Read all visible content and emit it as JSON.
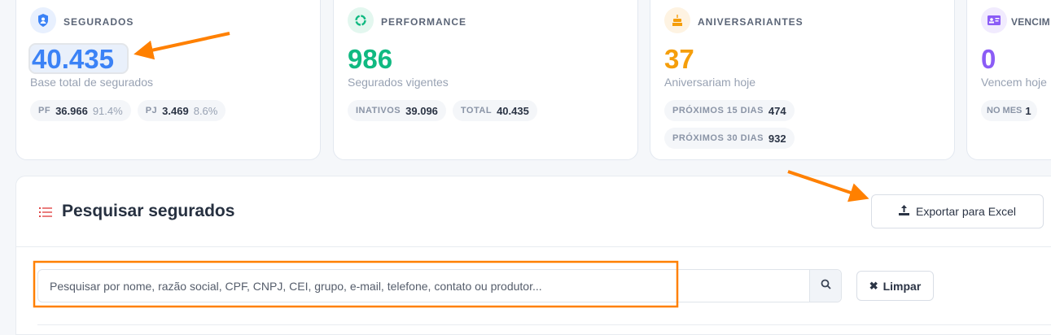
{
  "cards": [
    {
      "title": "SEGURADOS",
      "value": "40.435",
      "subtitle": "Base total de segurados",
      "color": "#3b82f6",
      "icon": "shield-user-icon",
      "pills": [
        {
          "label": "PF",
          "value": "36.966",
          "pct": "91.4%"
        },
        {
          "label": "PJ",
          "value": "3.469",
          "pct": "8.6%"
        }
      ]
    },
    {
      "title": "PERFORMANCE",
      "value": "986",
      "subtitle": "Segurados vigentes",
      "color": "#10b981",
      "icon": "ring-chart-icon",
      "pills": [
        {
          "label": "INATIVOS",
          "value": "39.096"
        },
        {
          "label": "TOTAL",
          "value": "40.435"
        }
      ]
    },
    {
      "title": "ANIVERSARIANTES",
      "value": "37",
      "subtitle": "Aniversariam hoje",
      "color": "#f59e0b",
      "icon": "birthday-cake-icon",
      "pills": [
        {
          "label": "PRÓXIMOS 15 DIAS",
          "value": "474"
        },
        {
          "label": "PRÓXIMOS 30 DIAS",
          "value": "932"
        }
      ]
    },
    {
      "title": "VENCIM",
      "value": "0",
      "subtitle": "Vencem hoje",
      "color": "#8b5cf6",
      "icon": "id-card-icon",
      "pills": [
        {
          "label": "NO MES",
          "value": "1"
        }
      ]
    }
  ],
  "search_panel": {
    "title": "Pesquisar segurados",
    "export_label": "Exportar para Excel",
    "search_placeholder": "Pesquisar por nome, razão social, CPF, CNPJ, CEI, grupo, e-mail, telefone, contato ou produtor...",
    "search_value": "",
    "clear_label": "Limpar"
  },
  "annotation_color": "#ff8000"
}
